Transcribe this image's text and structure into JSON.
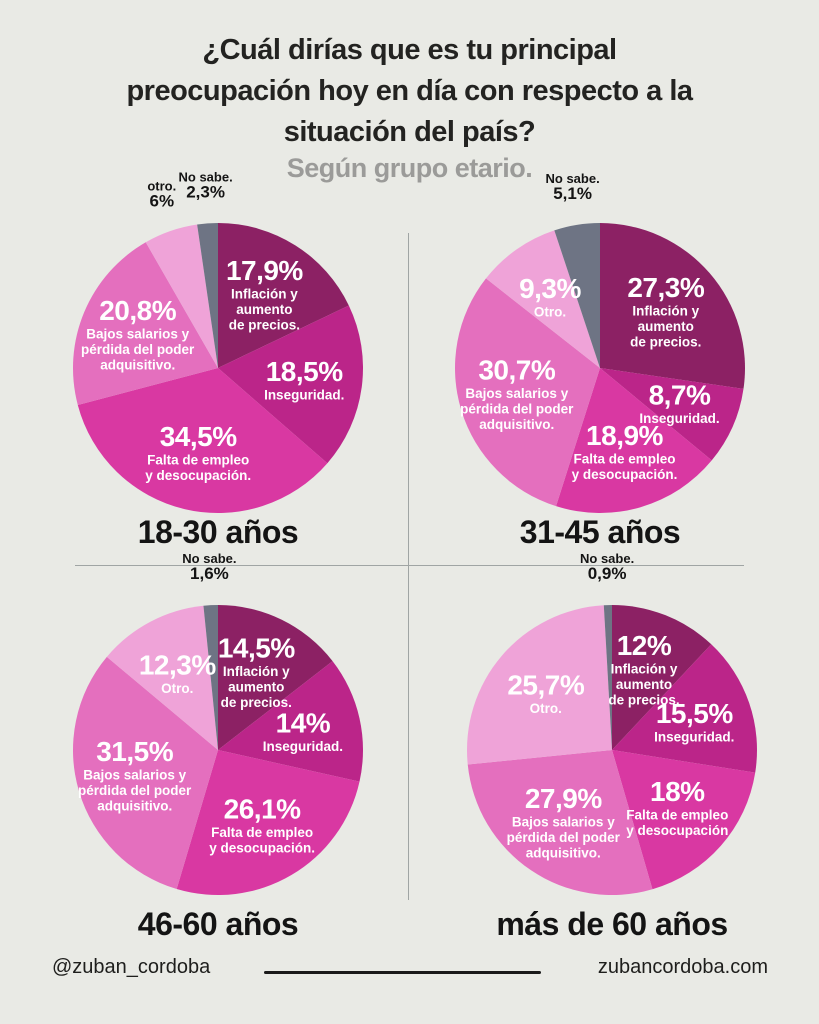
{
  "page": {
    "title_lines": [
      "¿Cuál dirías que es tu principal",
      "preocupación hoy en día con respecto a la",
      "situación del país?"
    ],
    "subtitle": "Según grupo etario.",
    "footer": {
      "handle": "@zuban_cordoba",
      "website": "zubancordoba.com"
    }
  },
  "palette": {
    "background": "#e9eae5",
    "title_color": "#232321",
    "subtitle_color": "#9b9b99",
    "outside_label_color": "#141414",
    "inside_label_color": "#ffffff",
    "divider_color": "#a0a5a4",
    "slice_colors": {
      "inflacion": "#8c2164",
      "inseguridad": "#bb2589",
      "falta": "#d938a2",
      "bajos": "#e46fbe",
      "otro": "#efa3d8",
      "no_sabe": "#6e7484"
    }
  },
  "chart_data": [
    {
      "type": "pie",
      "title": "18-30 años",
      "start_angle_deg": 0,
      "direction": "clockwise",
      "slices": [
        {
          "category": "Inflación y aumento de precios.",
          "value": 17.9,
          "value_label": "17,9%",
          "color_key": "inflacion",
          "label_placement": "inside",
          "label_lines": [
            "Inflación y",
            "aumento",
            "de precios."
          ]
        },
        {
          "category": "Inseguridad.",
          "value": 18.5,
          "value_label": "18,5%",
          "color_key": "inseguridad",
          "label_placement": "inside",
          "label_lines": [
            "Inseguridad."
          ]
        },
        {
          "category": "Falta de empleo y desocupación.",
          "value": 34.5,
          "value_label": "34,5%",
          "color_key": "falta",
          "label_placement": "inside",
          "label_lines": [
            "Falta de empleo",
            "y desocupación."
          ]
        },
        {
          "category": "Bajos salarios y pérdida del poder adquisitivo.",
          "value": 20.8,
          "value_label": "20,8%",
          "color_key": "bajos",
          "label_placement": "inside",
          "label_lines": [
            "Bajos salarios y",
            "pérdida del poder",
            "adquisitivo."
          ]
        },
        {
          "category": "otro.",
          "value": 6,
          "value_label": "6%",
          "color_key": "otro",
          "label_placement": "outside",
          "label_lines": [
            "otro."
          ]
        },
        {
          "category": "No sabe.",
          "value": 2.3,
          "value_label": "2,3%",
          "color_key": "no_sabe",
          "label_placement": "outside",
          "label_lines": [
            "No sabe."
          ]
        }
      ]
    },
    {
      "type": "pie",
      "title": "31-45 años",
      "start_angle_deg": 0,
      "direction": "clockwise",
      "slices": [
        {
          "category": "Inflación y aumento de precios.",
          "value": 27.3,
          "value_label": "27,3%",
          "color_key": "inflacion",
          "label_placement": "inside",
          "label_lines": [
            "Inflación y",
            "aumento",
            "de precios."
          ]
        },
        {
          "category": "Inseguridad.",
          "value": 8.7,
          "value_label": "8,7%",
          "color_key": "inseguridad",
          "label_placement": "inside",
          "label_lines": [
            "Inseguridad."
          ]
        },
        {
          "category": "Falta de empleo y desocupación.",
          "value": 18.9,
          "value_label": "18,9%",
          "color_key": "falta",
          "label_placement": "inside",
          "label_lines": [
            "Falta de empleo",
            "y desocupación."
          ]
        },
        {
          "category": "Bajos salarios y pérdida del poder adquisitivo.",
          "value": 30.7,
          "value_label": "30,7%",
          "color_key": "bajos",
          "label_placement": "inside",
          "label_lines": [
            "Bajos salarios y",
            "pérdida del poder",
            "adquisitivo."
          ]
        },
        {
          "category": "Otro.",
          "value": 9.3,
          "value_label": "9,3%",
          "color_key": "otro",
          "label_placement": "inside",
          "label_lines": [
            "Otro."
          ]
        },
        {
          "category": "No sabe.",
          "value": 5.1,
          "value_label": "5,1%",
          "color_key": "no_sabe",
          "label_placement": "outside",
          "label_lines": [
            "No sabe."
          ]
        }
      ]
    },
    {
      "type": "pie",
      "title": "46-60 años",
      "start_angle_deg": 0,
      "direction": "clockwise",
      "slices": [
        {
          "category": "Inflación y aumento de precios.",
          "value": 14.5,
          "value_label": "14,5%",
          "color_key": "inflacion",
          "label_placement": "inside",
          "label_lines": [
            "Inflación y",
            "aumento",
            "de precios."
          ]
        },
        {
          "category": "Inseguridad.",
          "value": 14,
          "value_label": "14%",
          "color_key": "inseguridad",
          "label_placement": "inside",
          "label_lines": [
            "Inseguridad."
          ]
        },
        {
          "category": "Falta de empleo y desocupación.",
          "value": 26.1,
          "value_label": "26,1%",
          "color_key": "falta",
          "label_placement": "inside",
          "label_lines": [
            "Falta de empleo",
            "y desocupación."
          ]
        },
        {
          "category": "Bajos salarios y pérdida del poder adquisitivo.",
          "value": 31.5,
          "value_label": "31,5%",
          "color_key": "bajos",
          "label_placement": "inside",
          "label_lines": [
            "Bajos salarios y",
            "pérdida del poder",
            "adquisitivo."
          ]
        },
        {
          "category": "Otro.",
          "value": 12.3,
          "value_label": "12,3%",
          "color_key": "otro",
          "label_placement": "inside",
          "label_lines": [
            "Otro."
          ]
        },
        {
          "category": "No sabe.",
          "value": 1.6,
          "value_label": "1,6%",
          "color_key": "no_sabe",
          "label_placement": "outside",
          "label_lines": [
            "No sabe."
          ]
        }
      ]
    },
    {
      "type": "pie",
      "title": "más de 60 años",
      "start_angle_deg": 0,
      "direction": "clockwise",
      "slices": [
        {
          "category": "Inflación y aumento de precios.",
          "value": 12,
          "value_label": "12%",
          "color_key": "inflacion",
          "label_placement": "inside",
          "label_lines": [
            "Inflación y",
            "aumento",
            "de precios."
          ]
        },
        {
          "category": "Inseguridad.",
          "value": 15.5,
          "value_label": "15,5%",
          "color_key": "inseguridad",
          "label_placement": "inside",
          "label_lines": [
            "Inseguridad."
          ]
        },
        {
          "category": "Falta de empleo y desocupación.",
          "value": 18,
          "value_label": "18%",
          "color_key": "falta",
          "label_placement": "inside",
          "label_lines": [
            "Falta de empleo",
            "y desocupación"
          ]
        },
        {
          "category": "Bajos salarios y pérdida del poder adquisitivo.",
          "value": 27.9,
          "value_label": "27,9%",
          "color_key": "bajos",
          "label_placement": "inside",
          "label_lines": [
            "Bajos salarios y",
            "pérdida del poder",
            "adquisitivo."
          ]
        },
        {
          "category": "Otro.",
          "value": 25.7,
          "value_label": "25,7%",
          "color_key": "otro",
          "label_placement": "inside",
          "label_lines": [
            "Otro."
          ]
        },
        {
          "category": "No sabe.",
          "value": 0.9,
          "value_label": "0,9%",
          "color_key": "no_sabe",
          "label_placement": "outside",
          "label_lines": [
            "No sabe."
          ]
        }
      ]
    }
  ]
}
